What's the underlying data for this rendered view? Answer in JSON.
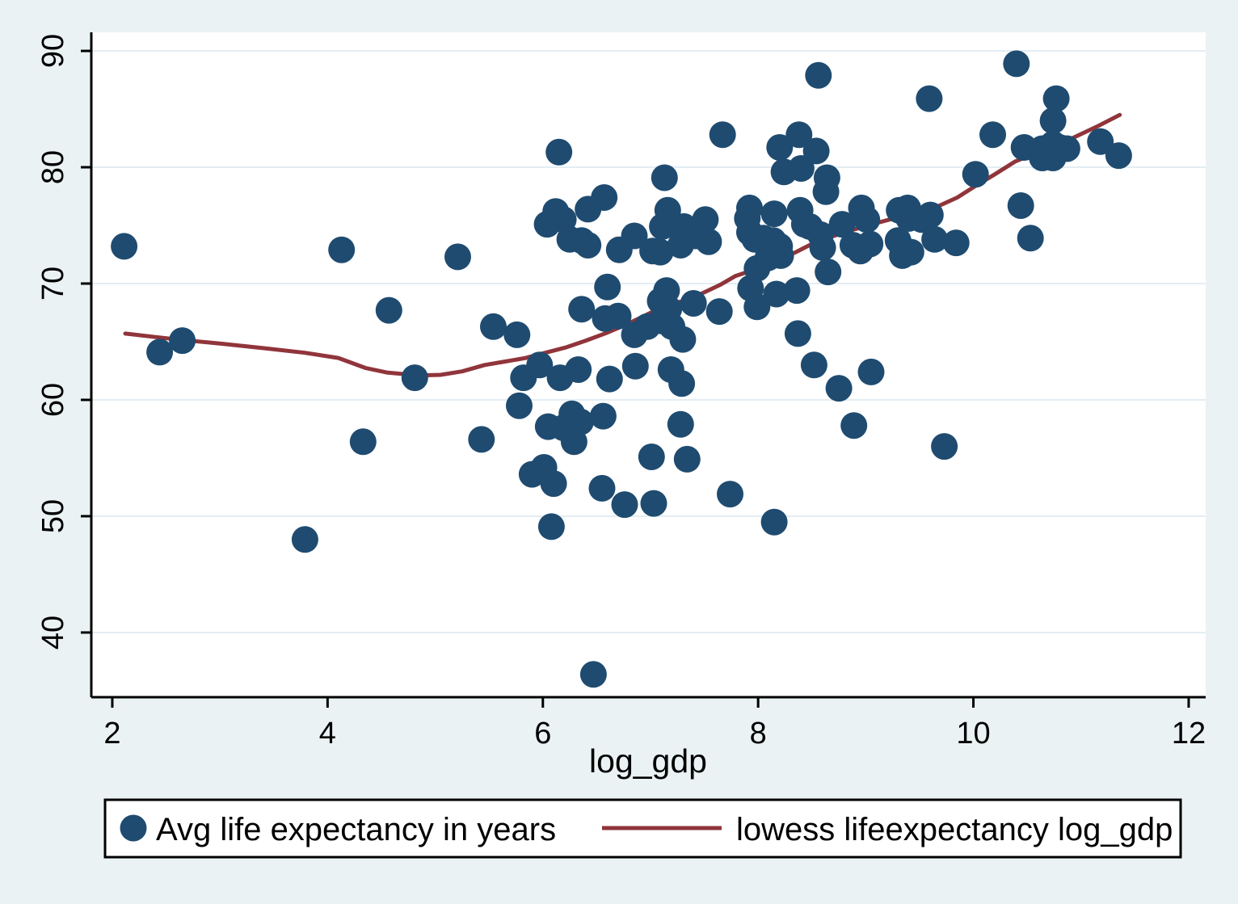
{
  "chart_data": {
    "type": "scatter",
    "title": "",
    "xlabel": "log_gdp",
    "ylabel": "",
    "xlim": [
      1.805,
      12.158
    ],
    "ylim": [
      34.44,
      91.6
    ],
    "x_ticks": [
      2,
      4,
      6,
      8,
      10,
      12
    ],
    "y_ticks": [
      40,
      50,
      60,
      70,
      80,
      90
    ],
    "grid": true,
    "legend_position": "bottom",
    "series": [
      {
        "name": "Avg life expectancy in years",
        "kind": "scatter",
        "color": "#1f4b70",
        "points": [
          [
            2.11,
            73.2
          ],
          [
            2.44,
            64.1
          ],
          [
            2.65,
            65.1
          ],
          [
            3.79,
            48.0
          ],
          [
            4.13,
            72.9
          ],
          [
            4.33,
            56.4
          ],
          [
            4.57,
            67.7
          ],
          [
            4.81,
            61.9
          ],
          [
            5.21,
            72.3
          ],
          [
            5.43,
            56.6
          ],
          [
            5.54,
            66.3
          ],
          [
            5.76,
            65.6
          ],
          [
            5.78,
            59.5
          ],
          [
            5.82,
            61.9
          ],
          [
            5.9,
            53.6
          ],
          [
            5.97,
            63.0
          ],
          [
            6.01,
            54.2
          ],
          [
            6.04,
            75.1
          ],
          [
            6.05,
            57.7
          ],
          [
            6.08,
            49.1
          ],
          [
            6.1,
            52.8
          ],
          [
            6.12,
            76.2
          ],
          [
            6.15,
            81.3
          ],
          [
            6.16,
            61.9
          ],
          [
            6.19,
            75.5
          ],
          [
            6.19,
            57.6
          ],
          [
            6.25,
            73.8
          ],
          [
            6.27,
            58.8
          ],
          [
            6.29,
            56.4
          ],
          [
            6.33,
            62.6
          ],
          [
            6.35,
            58.1
          ],
          [
            6.36,
            73.7
          ],
          [
            6.36,
            67.8
          ],
          [
            6.42,
            73.3
          ],
          [
            6.42,
            76.4
          ],
          [
            6.47,
            36.4
          ],
          [
            6.55,
            52.4
          ],
          [
            6.56,
            58.6
          ],
          [
            6.57,
            77.4
          ],
          [
            6.58,
            67.0
          ],
          [
            6.6,
            69.7
          ],
          [
            6.62,
            61.8
          ],
          [
            6.7,
            67.2
          ],
          [
            6.71,
            72.9
          ],
          [
            6.76,
            51.0
          ],
          [
            6.85,
            74.1
          ],
          [
            6.85,
            65.6
          ],
          [
            6.86,
            62.9
          ],
          [
            6.97,
            66.3
          ],
          [
            7.01,
            55.1
          ],
          [
            7.02,
            72.8
          ],
          [
            7.03,
            51.1
          ],
          [
            7.09,
            68.5
          ],
          [
            7.09,
            72.7
          ],
          [
            7.1,
            66.8
          ],
          [
            7.11,
            74.9
          ],
          [
            7.13,
            79.1
          ],
          [
            7.15,
            69.4
          ],
          [
            7.16,
            76.3
          ],
          [
            7.17,
            67.8
          ],
          [
            7.19,
            62.6
          ],
          [
            7.2,
            66.3
          ],
          [
            7.28,
            57.9
          ],
          [
            7.29,
            61.4
          ],
          [
            7.28,
            73.3
          ],
          [
            7.3,
            65.2
          ],
          [
            7.31,
            74.9
          ],
          [
            7.34,
            54.9
          ],
          [
            7.4,
            68.3
          ],
          [
            7.42,
            74.1
          ],
          [
            7.51,
            75.5
          ],
          [
            7.54,
            73.6
          ],
          [
            7.64,
            67.6
          ],
          [
            7.67,
            82.8
          ],
          [
            7.74,
            51.9
          ],
          [
            7.9,
            75.6
          ],
          [
            7.92,
            76.5
          ],
          [
            7.92,
            74.4
          ],
          [
            7.93,
            69.6
          ],
          [
            7.97,
            73.8
          ],
          [
            7.99,
            71.3
          ],
          [
            7.99,
            68.0
          ],
          [
            8.05,
            73.9
          ],
          [
            8.09,
            72.2
          ],
          [
            8.14,
            73.7
          ],
          [
            8.15,
            76.0
          ],
          [
            8.15,
            49.5
          ],
          [
            8.17,
            69.1
          ],
          [
            8.2,
            73.2
          ],
          [
            8.2,
            81.7
          ],
          [
            8.21,
            72.4
          ],
          [
            8.24,
            79.6
          ],
          [
            8.36,
            69.4
          ],
          [
            8.38,
            82.8
          ],
          [
            8.37,
            65.7
          ],
          [
            8.39,
            76.3
          ],
          [
            8.4,
            79.9
          ],
          [
            8.43,
            75.1
          ],
          [
            8.48,
            74.9
          ],
          [
            8.52,
            63.0
          ],
          [
            8.54,
            81.4
          ],
          [
            8.56,
            87.9
          ],
          [
            8.58,
            74.2
          ],
          [
            8.6,
            73.1
          ],
          [
            8.63,
            77.9
          ],
          [
            8.64,
            79.1
          ],
          [
            8.65,
            71.0
          ],
          [
            8.75,
            61.0
          ],
          [
            8.78,
            75.1
          ],
          [
            8.88,
            73.3
          ],
          [
            8.89,
            57.8
          ],
          [
            8.95,
            72.8
          ],
          [
            8.96,
            76.5
          ],
          [
            9.01,
            75.5
          ],
          [
            9.04,
            73.4
          ],
          [
            9.05,
            62.4
          ],
          [
            9.3,
            73.7
          ],
          [
            9.31,
            76.3
          ],
          [
            9.34,
            72.4
          ],
          [
            9.39,
            76.5
          ],
          [
            9.4,
            75.6
          ],
          [
            9.42,
            72.7
          ],
          [
            9.52,
            75.5
          ],
          [
            9.59,
            85.9
          ],
          [
            9.6,
            75.9
          ],
          [
            9.64,
            73.8
          ],
          [
            9.73,
            56.0
          ],
          [
            9.84,
            73.5
          ],
          [
            10.02,
            79.4
          ],
          [
            10.18,
            82.8
          ],
          [
            10.4,
            88.9
          ],
          [
            10.44,
            76.7
          ],
          [
            10.47,
            81.7
          ],
          [
            10.53,
            73.9
          ],
          [
            10.64,
            81.6
          ],
          [
            10.64,
            80.8
          ],
          [
            10.74,
            82.0
          ],
          [
            10.74,
            80.8
          ],
          [
            10.74,
            84.0
          ],
          [
            10.77,
            85.9
          ],
          [
            10.8,
            81.7
          ],
          [
            10.87,
            81.6
          ],
          [
            11.18,
            82.2
          ],
          [
            11.35,
            81.0
          ]
        ]
      },
      {
        "name": "lowess lifeexpectancy log_gdp",
        "kind": "line",
        "color": "#90353b",
        "points": [
          [
            2.12,
            65.7
          ],
          [
            2.4,
            65.4
          ],
          [
            2.65,
            65.15
          ],
          [
            3.0,
            64.85
          ],
          [
            3.4,
            64.45
          ],
          [
            3.79,
            64.05
          ],
          [
            4.1,
            63.6
          ],
          [
            4.35,
            62.75
          ],
          [
            4.55,
            62.35
          ],
          [
            4.85,
            62.1
          ],
          [
            5.05,
            62.15
          ],
          [
            5.25,
            62.45
          ],
          [
            5.46,
            63.0
          ],
          [
            5.65,
            63.3
          ],
          [
            5.84,
            63.6
          ],
          [
            6.0,
            64.0
          ],
          [
            6.21,
            64.5
          ],
          [
            6.4,
            65.1
          ],
          [
            6.59,
            65.75
          ],
          [
            6.78,
            66.5
          ],
          [
            6.96,
            67.3
          ],
          [
            7.1,
            67.95
          ],
          [
            7.22,
            68.3
          ],
          [
            7.34,
            68.6
          ],
          [
            7.49,
            69.2
          ],
          [
            7.65,
            69.9
          ],
          [
            7.79,
            70.65
          ],
          [
            8.0,
            71.3
          ],
          [
            8.16,
            71.9
          ],
          [
            8.35,
            72.7
          ],
          [
            8.54,
            73.6
          ],
          [
            8.72,
            74.15
          ],
          [
            8.91,
            74.7
          ],
          [
            9.1,
            75.2
          ],
          [
            9.3,
            75.7
          ],
          [
            9.5,
            76.2
          ],
          [
            9.66,
            76.6
          ],
          [
            9.85,
            77.4
          ],
          [
            10.02,
            78.4
          ],
          [
            10.2,
            79.4
          ],
          [
            10.39,
            80.5
          ],
          [
            10.6,
            81.3
          ],
          [
            10.74,
            81.8
          ],
          [
            10.92,
            82.5
          ],
          [
            11.17,
            83.6
          ],
          [
            11.36,
            84.5
          ]
        ]
      }
    ]
  },
  "colors": {
    "page_bg": "#eaf2f3",
    "plot_bg": "#ffffff",
    "grid": "#e3edf3",
    "axis": "#000000",
    "marker": "#1f4b70",
    "line": "#90353b",
    "legend_bg": "#ffffff",
    "legend_border": "#000000"
  }
}
